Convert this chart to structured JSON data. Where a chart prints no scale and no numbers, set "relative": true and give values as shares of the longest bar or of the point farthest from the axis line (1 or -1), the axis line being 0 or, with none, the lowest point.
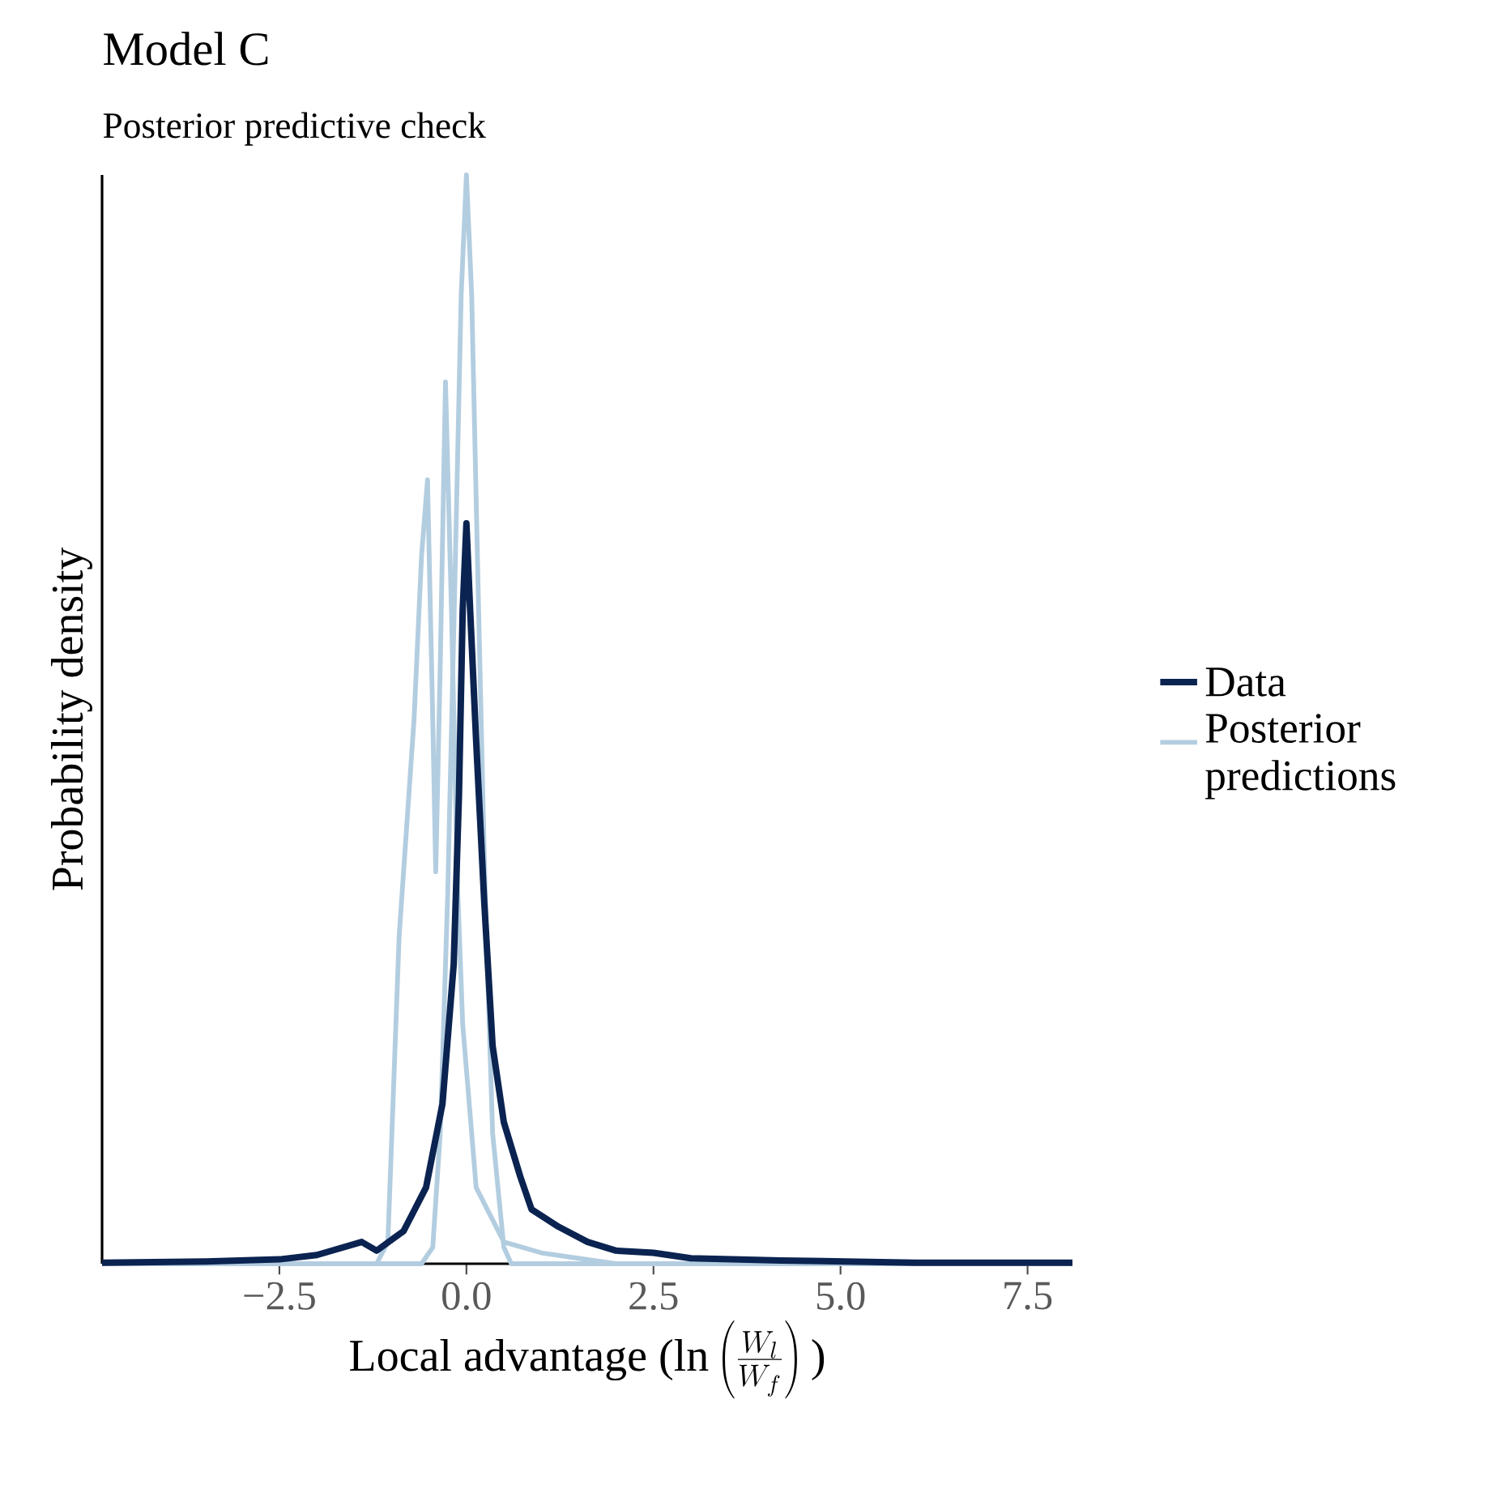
{
  "chart_data": {
    "type": "line",
    "title": "Model C",
    "subtitle": "Posterior predictive check",
    "xlabel": "\\mbox{Local advantage (ln}\\left(\\frac{W_l}{W_f}\\right)\\mbox{)}",
    "ylabel": "Probability density",
    "relative": true,
    "legend": "right",
    "xlim": [
      -4.87,
      8.1
    ],
    "xticks": [
      {
        "value": -2.5,
        "label": "−2.5"
      },
      {
        "value": 0,
        "label": "0.0"
      },
      {
        "value": 2.5,
        "label": "2.5"
      },
      {
        "value": 5,
        "label": "5.0"
      },
      {
        "value": 7.5,
        "label": "7.5"
      }
    ],
    "series": [
      {
        "name": "Posterior predictions",
        "color": "#b3cde0",
        "x": [
          -4.87,
          -0.6,
          -0.45,
          -0.35,
          -0.25,
          -0.15,
          -0.07,
          0,
          0.07,
          0.15,
          0.25,
          0.35,
          0.5,
          0.6,
          8.1
        ],
        "values": [
          0,
          0,
          0.015,
          0.12,
          0.34,
          0.64,
          0.89,
          1,
          0.89,
          0.64,
          0.34,
          0.12,
          0.015,
          0,
          0
        ]
      },
      {
        "color": "#b3cde0",
        "x": [
          -4.87,
          -1.2,
          -1.05,
          -0.98,
          -0.9,
          -0.82,
          -0.7,
          -0.6,
          -0.52,
          -0.45,
          -0.41,
          -0.35,
          -0.28,
          -0.2,
          -0.12,
          -0.05,
          0.13,
          0.5,
          1,
          2,
          8.1
        ],
        "values": [
          0,
          0,
          0.02,
          0.15,
          0.3,
          0.38,
          0.5,
          0.65,
          0.72,
          0.5,
          0.36,
          0.55,
          0.81,
          0.6,
          0.35,
          0.22,
          0.07,
          0.02,
          0.01,
          0,
          0
        ]
      },
      {
        "name": "Data",
        "color": "#0b2350",
        "x": [
          -4.87,
          -3.5,
          -2.5,
          -2,
          -1.4,
          -1.2,
          -0.84,
          -0.54,
          -0.32,
          -0.17,
          -0.1,
          -0.05,
          0,
          0.05,
          0.13,
          0.24,
          0.35,
          0.5,
          0.72,
          0.87,
          1.23,
          1.62,
          2,
          2.5,
          3,
          4.2,
          6,
          8.1
        ],
        "values": [
          0.001,
          0.002,
          0.004,
          0.008,
          0.02,
          0.012,
          0.03,
          0.07,
          0.147,
          0.275,
          0.43,
          0.6,
          0.68,
          0.6,
          0.48,
          0.33,
          0.2,
          0.13,
          0.08,
          0.05,
          0.034,
          0.02,
          0.012,
          0.01,
          0.005,
          0.003,
          0.001,
          0.001
        ]
      }
    ]
  }
}
